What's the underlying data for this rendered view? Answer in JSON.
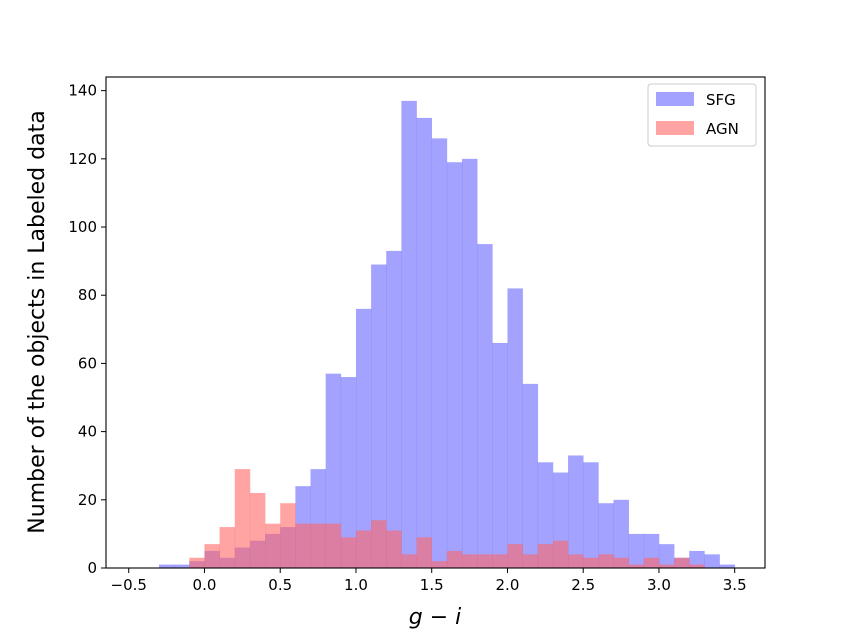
{
  "chart_data": {
    "type": "bar",
    "subtype": "overlaid-histogram",
    "xlabel": "g − i",
    "ylabel": "Number of the objects in Labeled data",
    "xlim": [
      -0.65,
      3.7
    ],
    "ylim": [
      0,
      144
    ],
    "xticks": [
      -0.5,
      0.0,
      0.5,
      1.0,
      1.5,
      2.0,
      2.5,
      3.0,
      3.5
    ],
    "xtick_labels": [
      "−0.5",
      "0.0",
      "0.5",
      "1.0",
      "1.5",
      "2.0",
      "2.5",
      "3.0",
      "3.5"
    ],
    "yticks": [
      0,
      20,
      40,
      60,
      80,
      100,
      120,
      140
    ],
    "ytick_labels": [
      "0",
      "20",
      "40",
      "60",
      "80",
      "100",
      "120",
      "140"
    ],
    "bin_width": 0.1,
    "legend_position": "top-right",
    "series": [
      {
        "name": "SFG",
        "color": "#6666ff",
        "bins": [
          [
            -0.3,
            1
          ],
          [
            -0.2,
            1
          ],
          [
            -0.1,
            2
          ],
          [
            0.0,
            5
          ],
          [
            0.1,
            3
          ],
          [
            0.2,
            6
          ],
          [
            0.3,
            8
          ],
          [
            0.4,
            10
          ],
          [
            0.5,
            12
          ],
          [
            0.6,
            24
          ],
          [
            0.7,
            29
          ],
          [
            0.8,
            57
          ],
          [
            0.9,
            56
          ],
          [
            1.0,
            76
          ],
          [
            1.1,
            89
          ],
          [
            1.2,
            93
          ],
          [
            1.3,
            137
          ],
          [
            1.4,
            132
          ],
          [
            1.5,
            126
          ],
          [
            1.6,
            119
          ],
          [
            1.7,
            120
          ],
          [
            1.8,
            95
          ],
          [
            1.9,
            66
          ],
          [
            2.0,
            82
          ],
          [
            2.1,
            54
          ],
          [
            2.2,
            31
          ],
          [
            2.3,
            28
          ],
          [
            2.4,
            33
          ],
          [
            2.5,
            31
          ],
          [
            2.6,
            19
          ],
          [
            2.7,
            20
          ],
          [
            2.8,
            10
          ],
          [
            2.9,
            10
          ],
          [
            3.0,
            7
          ],
          [
            3.1,
            3
          ],
          [
            3.2,
            5
          ],
          [
            3.3,
            4
          ],
          [
            3.4,
            1
          ]
        ]
      },
      {
        "name": "AGN",
        "color": "#ff6666",
        "bins": [
          [
            -0.1,
            3
          ],
          [
            0.0,
            7
          ],
          [
            0.1,
            12
          ],
          [
            0.2,
            29
          ],
          [
            0.3,
            22
          ],
          [
            0.4,
            13
          ],
          [
            0.5,
            19
          ],
          [
            0.6,
            13
          ],
          [
            0.7,
            13
          ],
          [
            0.8,
            13
          ],
          [
            0.9,
            9
          ],
          [
            1.0,
            11
          ],
          [
            1.1,
            14
          ],
          [
            1.2,
            11
          ],
          [
            1.3,
            4
          ],
          [
            1.4,
            9
          ],
          [
            1.5,
            2
          ],
          [
            1.6,
            5
          ],
          [
            1.7,
            4
          ],
          [
            1.8,
            4
          ],
          [
            1.9,
            4
          ],
          [
            2.0,
            7
          ],
          [
            2.1,
            4
          ],
          [
            2.2,
            7
          ],
          [
            2.3,
            8
          ],
          [
            2.4,
            4
          ],
          [
            2.5,
            3
          ],
          [
            2.6,
            4
          ],
          [
            2.7,
            3
          ],
          [
            2.8,
            1
          ],
          [
            2.9,
            3
          ],
          [
            3.0,
            1
          ],
          [
            3.1,
            3
          ],
          [
            3.2,
            1
          ]
        ]
      }
    ]
  }
}
